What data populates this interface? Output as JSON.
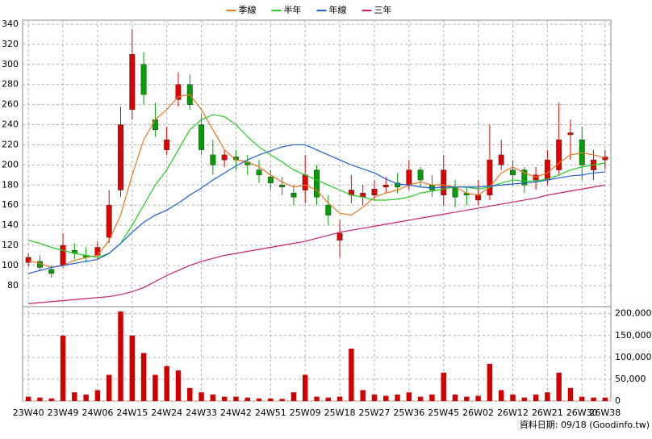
{
  "chart_data": {
    "type": "candlestick",
    "categories": [
      "23W40",
      null,
      null,
      "23W49",
      null,
      null,
      "24W06",
      null,
      null,
      "24W15",
      null,
      null,
      "24W24",
      null,
      null,
      "24W33",
      null,
      null,
      "24W42",
      null,
      null,
      "24W51",
      null,
      null,
      "25W09",
      null,
      null,
      "25W18",
      null,
      null,
      "25W27",
      null,
      null,
      "25W36",
      null,
      null,
      "25W45",
      null,
      null,
      "26W02",
      null,
      null,
      "26W12",
      null,
      null,
      "26W21",
      null,
      null,
      "26W30",
      null,
      "26W38"
    ],
    "open": [
      103,
      104,
      96,
      100,
      115,
      110,
      110,
      128,
      175,
      255,
      300,
      245,
      215,
      265,
      280,
      240,
      210,
      205,
      208,
      203,
      195,
      188,
      180,
      172,
      175,
      195,
      160,
      125,
      170,
      168,
      170,
      178,
      182,
      180,
      195,
      180,
      170,
      178,
      172,
      165,
      170,
      200,
      195,
      195,
      185,
      185,
      195,
      230,
      225,
      195,
      205
    ],
    "high": [
      112,
      110,
      100,
      132,
      122,
      118,
      124,
      175,
      258,
      335,
      312,
      262,
      238,
      292,
      290,
      250,
      225,
      215,
      215,
      210,
      205,
      195,
      188,
      180,
      210,
      200,
      170,
      145,
      190,
      180,
      185,
      188,
      192,
      205,
      198,
      190,
      210,
      185,
      178,
      185,
      240,
      225,
      205,
      198,
      198,
      215,
      262,
      245,
      238,
      215,
      215
    ],
    "low": [
      99,
      94,
      88,
      98,
      106,
      103,
      106,
      122,
      168,
      245,
      260,
      228,
      210,
      258,
      255,
      210,
      190,
      198,
      195,
      190,
      182,
      175,
      170,
      160,
      162,
      160,
      140,
      108,
      162,
      160,
      165,
      172,
      172,
      175,
      178,
      168,
      160,
      158,
      160,
      160,
      165,
      195,
      180,
      172,
      175,
      180,
      190,
      205,
      185,
      185,
      195
    ],
    "close": [
      108,
      98,
      92,
      120,
      112,
      108,
      118,
      160,
      240,
      310,
      270,
      235,
      225,
      280,
      260,
      215,
      200,
      210,
      205,
      200,
      190,
      182,
      178,
      168,
      190,
      168,
      150,
      132,
      175,
      172,
      176,
      180,
      178,
      195,
      185,
      175,
      195,
      168,
      170,
      170,
      205,
      210,
      190,
      180,
      190,
      205,
      225,
      232,
      200,
      205,
      208
    ],
    "up_color": "#e00000",
    "down_color": "#00a000",
    "series": [
      {
        "name": "季線",
        "color": "#e87722",
        "values": [
          105,
          102,
          98,
          100,
          105,
          108,
          110,
          125,
          150,
          190,
          225,
          245,
          255,
          268,
          270,
          255,
          235,
          215,
          205,
          203,
          198,
          190,
          183,
          178,
          180,
          175,
          162,
          152,
          150,
          158,
          168,
          172,
          175,
          180,
          183,
          180,
          180,
          178,
          172,
          170,
          178,
          192,
          198,
          192,
          188,
          192,
          202,
          210,
          212,
          210,
          207
        ]
      },
      {
        "name": "半年",
        "color": "#22cc22",
        "values": [
          125,
          122,
          118,
          115,
          112,
          110,
          108,
          112,
          122,
          140,
          160,
          180,
          195,
          215,
          235,
          245,
          250,
          248,
          240,
          228,
          218,
          210,
          203,
          195,
          190,
          185,
          180,
          175,
          170,
          168,
          165,
          165,
          166,
          168,
          172,
          174,
          176,
          178,
          178,
          176,
          178,
          182,
          185,
          184,
          184,
          186,
          190,
          195,
          198,
          200,
          202
        ]
      },
      {
        "name": "年線",
        "color": "#1f5fd6",
        "values": [
          92,
          95,
          98,
          100,
          102,
          104,
          106,
          112,
          122,
          133,
          143,
          150,
          155,
          162,
          170,
          177,
          185,
          192,
          199,
          205,
          210,
          214,
          218,
          220,
          220,
          215,
          210,
          205,
          200,
          196,
          192,
          186,
          181,
          180,
          178,
          177,
          178,
          178,
          178,
          178,
          179,
          180,
          181,
          182,
          183,
          185,
          187,
          189,
          190,
          192,
          193
        ]
      },
      {
        "name": "三年",
        "color": "#cc1f6a",
        "values": [
          62,
          63,
          64,
          65,
          66,
          67,
          68,
          69,
          71,
          74,
          78,
          84,
          90,
          95,
          100,
          104,
          107,
          110,
          112,
          114,
          116,
          118,
          120,
          122,
          124,
          127,
          130,
          133,
          135,
          137,
          139,
          141,
          143,
          145,
          147,
          149,
          151,
          153,
          155,
          157,
          159,
          161,
          163,
          165,
          167,
          170,
          172,
          174,
          176,
          178,
          180
        ]
      }
    ],
    "legend": "top",
    "grid": true,
    "ylim": [
      59,
      344
    ],
    "yticks": [
      80,
      100,
      120,
      140,
      160,
      180,
      200,
      220,
      240,
      260,
      280,
      300,
      320,
      340
    ],
    "volume": {
      "type": "bar",
      "color": "#d00000",
      "values": [
        10000,
        8000,
        6000,
        150000,
        20000,
        15000,
        25000,
        60000,
        205000,
        150000,
        110000,
        60000,
        80000,
        70000,
        30000,
        20000,
        15000,
        10000,
        10000,
        8000,
        6000,
        6000,
        5000,
        20000,
        60000,
        10000,
        8000,
        10000,
        120000,
        25000,
        15000,
        12000,
        15000,
        20000,
        10000,
        15000,
        65000,
        15000,
        10000,
        12000,
        85000,
        25000,
        15000,
        8000,
        15000,
        20000,
        65000,
        30000,
        10000,
        8000,
        8000
      ],
      "ylim": [
        0,
        216000
      ],
      "yticks": [
        0,
        {
          "value": 50000,
          "label": "50,000"
        },
        {
          "value": 100000,
          "label": "100,000"
        },
        {
          "value": 150000,
          "label": "150,000"
        },
        {
          "value": 200000,
          "label": "200,000"
        }
      ]
    },
    "footnote": "資料日期: 09/18 (Goodinfo.tw)"
  }
}
